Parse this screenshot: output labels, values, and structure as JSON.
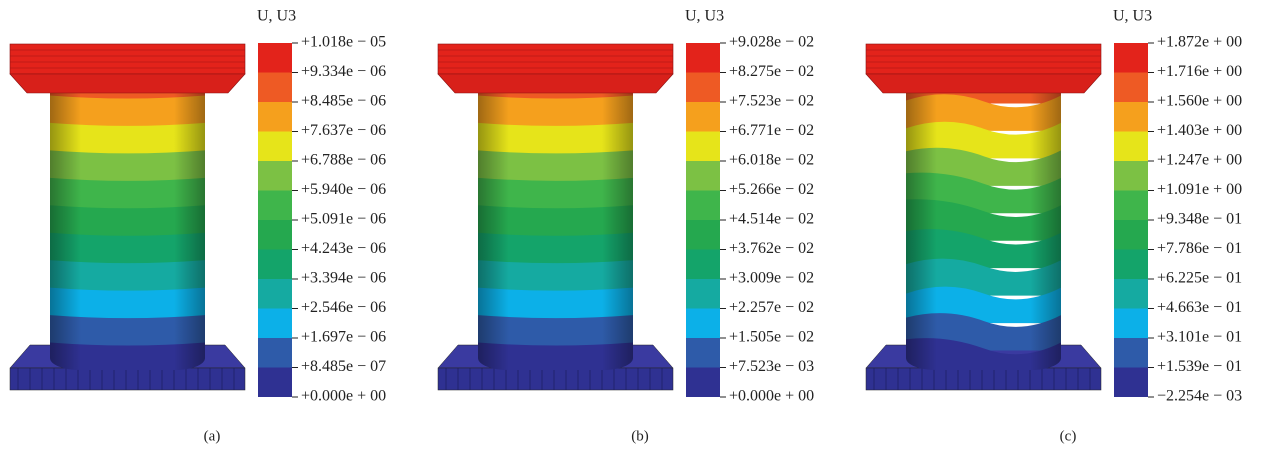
{
  "panels": [
    {
      "legend_title": "U, U3",
      "caption": "(a)",
      "legend_labels": [
        "+1.018e − 05",
        "+9.334e − 06",
        "+8.485e − 06",
        "+7.637e − 06",
        "+6.788e − 06",
        "+5.940e − 06",
        "+5.091e − 06",
        "+4.243e − 06",
        "+3.394e − 06",
        "+2.546e − 06",
        "+1.697e − 06",
        "+8.485e − 07",
        "+0.000e + 00"
      ]
    },
    {
      "legend_title": "U, U3",
      "caption": "(b)",
      "legend_labels": [
        "+9.028e − 02",
        "+8.275e − 02",
        "+7.523e − 02",
        "+6.771e − 02",
        "+6.018e − 02",
        "+5.266e − 02",
        "+4.514e − 02",
        "+3.762e − 02",
        "+3.009e − 02",
        "+2.257e − 02",
        "+1.505e − 02",
        "+7.523e − 03",
        "+0.000e + 00"
      ]
    },
    {
      "legend_title": "U, U3",
      "caption": "(c)",
      "legend_labels": [
        "+1.872e + 00",
        "+1.716e + 00",
        "+1.560e + 00",
        "+1.403e + 00",
        "+1.247e + 00",
        "+1.091e + 00",
        "+9.348e − 01",
        "+7.786e − 01",
        "+6.225e − 01",
        "+4.663e − 01",
        "+3.101e − 01",
        "+1.539e − 01",
        "−2.254e − 03"
      ]
    }
  ]
}
